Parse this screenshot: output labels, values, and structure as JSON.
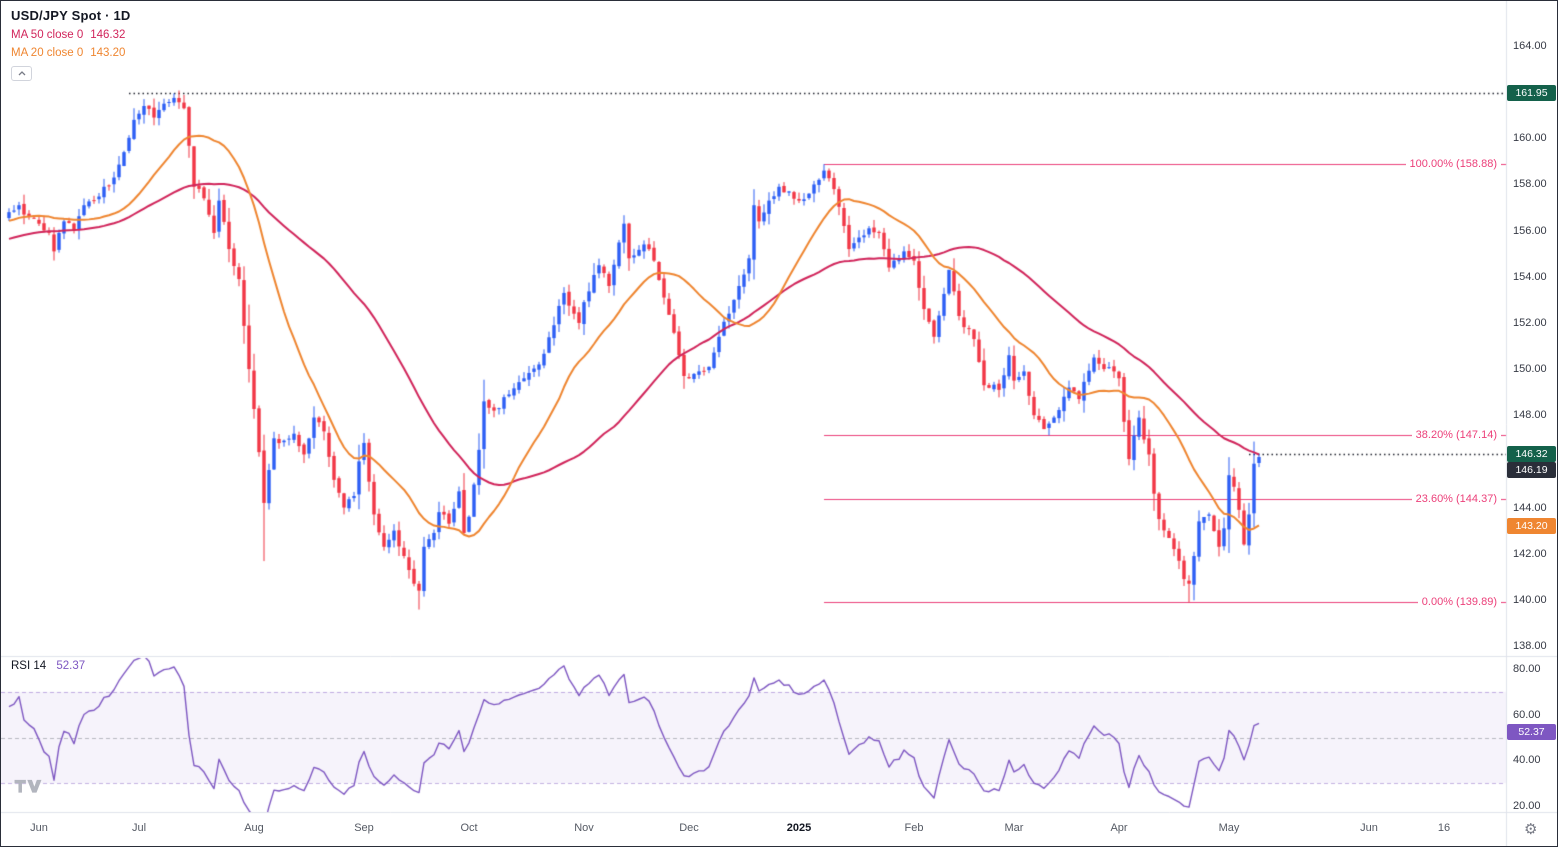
{
  "header": {
    "title": "USD/JPY Spot · 1D"
  },
  "legend": {
    "ma50": {
      "label": "MA 50 close 0",
      "value": "146.32"
    },
    "ma20": {
      "label": "MA 20 close 0",
      "value": "143.20"
    },
    "rsi": {
      "label": "RSI 14",
      "value": "52.37"
    }
  },
  "price_axis": {
    "ticks": [
      "164.00",
      "162.00",
      "160.00",
      "158.00",
      "156.00",
      "154.00",
      "152.00",
      "150.00",
      "148.00",
      "146.00",
      "144.00",
      "142.00",
      "140.00",
      "138.00"
    ],
    "badges": [
      {
        "label": "161.95",
        "value": 161.95,
        "bg": "#14614b"
      },
      {
        "label": "146.32",
        "value": 146.32,
        "bg": "#14614b"
      },
      {
        "label": "146.19",
        "value": 146.19,
        "bg": "#2a2e39"
      },
      {
        "label": "143.20",
        "value": 143.2,
        "bg": "#ef8631"
      }
    ],
    "rsi_ticks": [
      "80.00",
      "60.00",
      "40.00",
      "20.00"
    ],
    "rsi_badge": {
      "label": "52.37",
      "value": 52.37,
      "bg": "#7e57c2"
    }
  },
  "chart_data": {
    "type": "candlestick",
    "title": "USD/JPY Spot · 1D",
    "interval": "1D",
    "y_range": [
      138,
      164
    ],
    "candle_count": 251,
    "domain_candles": 300,
    "colors": {
      "up": "#2d5ff5",
      "down": "#f23645",
      "fib": "#ec407a",
      "dotted": "#1e222d",
      "grid": "#f0f3fa"
    },
    "ma": [
      {
        "period": 50,
        "color": "#d1255b",
        "last": "146.32"
      },
      {
        "period": 20,
        "color": "#ef8631",
        "last": "143.20"
      }
    ],
    "rsi": {
      "period": 14,
      "last": "52.37",
      "color": "#7e57c2",
      "band": [
        30,
        70
      ],
      "mid": 50,
      "range": [
        20,
        80
      ]
    },
    "last_close": 146.19,
    "fib_start_idx": 163,
    "fib_levels": [
      {
        "label": "100.00% (158.88)",
        "value": 158.88
      },
      {
        "label": "38.20% (147.14)",
        "value": 147.14
      },
      {
        "label": "23.60% (144.37)",
        "value": 144.37
      },
      {
        "label": "0.00% (139.89)",
        "value": 139.89
      }
    ],
    "dotted_lines": [
      {
        "value": 161.95,
        "from_idx": 24
      },
      {
        "value": 146.32,
        "from_idx": 248
      }
    ],
    "x_labels": [
      {
        "label": "Jun",
        "idx": 6
      },
      {
        "label": "Jul",
        "idx": 26
      },
      {
        "label": "Aug",
        "idx": 49
      },
      {
        "label": "Sep",
        "idx": 71
      },
      {
        "label": "Oct",
        "idx": 92
      },
      {
        "label": "Nov",
        "idx": 115
      },
      {
        "label": "Dec",
        "idx": 136
      },
      {
        "label": "2025",
        "idx": 158,
        "bold": true
      },
      {
        "label": "Feb",
        "idx": 181
      },
      {
        "label": "Mar",
        "idx": 201
      },
      {
        "label": "Apr",
        "idx": 222
      },
      {
        "label": "May",
        "idx": 244
      },
      {
        "label": "Jun",
        "idx": 272
      },
      {
        "label": "16",
        "idx": 287
      }
    ],
    "pre_anchors": [
      [
        -55,
        153.2
      ],
      [
        -45,
        154.6
      ],
      [
        -35,
        155.9
      ],
      [
        -25,
        154.8
      ],
      [
        -15,
        156.2
      ],
      [
        -5,
        156.9
      ],
      [
        -1,
        156.7
      ]
    ],
    "price_anchors": [
      [
        0,
        156.8
      ],
      [
        2,
        157.1
      ],
      [
        4,
        156.6
      ],
      [
        6,
        156.3
      ],
      [
        8,
        155.9
      ],
      [
        9,
        155.1
      ],
      [
        11,
        156.4
      ],
      [
        13,
        156.0
      ],
      [
        15,
        157.1
      ],
      [
        17,
        157.3
      ],
      [
        19,
        157.9
      ],
      [
        21,
        158.3
      ],
      [
        23,
        159.4
      ],
      [
        25,
        160.8
      ],
      [
        27,
        161.4
      ],
      [
        29,
        160.9
      ],
      [
        31,
        161.5
      ],
      [
        33,
        161.75
      ],
      [
        35,
        161.3
      ],
      [
        37,
        157.9
      ],
      [
        39,
        157.4
      ],
      [
        41,
        155.9
      ],
      [
        42,
        157.3
      ],
      [
        44,
        155.2
      ],
      [
        46,
        153.9
      ],
      [
        48,
        150.0
      ],
      [
        50,
        146.4
      ],
      [
        51,
        144.2
      ],
      [
        53,
        147.0
      ],
      [
        55,
        146.9
      ],
      [
        57,
        147.2
      ],
      [
        59,
        146.3
      ],
      [
        61,
        147.9
      ],
      [
        63,
        147.3
      ],
      [
        65,
        145.2
      ],
      [
        67,
        144.0
      ],
      [
        69,
        144.5
      ],
      [
        70,
        146.0
      ],
      [
        71,
        146.8
      ],
      [
        73,
        143.7
      ],
      [
        75,
        142.3
      ],
      [
        77,
        143.0
      ],
      [
        79,
        141.9
      ],
      [
        81,
        140.7
      ],
      [
        82,
        140.4
      ],
      [
        83,
        142.3
      ],
      [
        85,
        142.9
      ],
      [
        86,
        143.8
      ],
      [
        88,
        143.3
      ],
      [
        90,
        144.7
      ],
      [
        91,
        142.9
      ],
      [
        92,
        143.6
      ],
      [
        94,
        146.5
      ],
      [
        95,
        148.6
      ],
      [
        97,
        148.2
      ],
      [
        100,
        148.9
      ],
      [
        103,
        149.6
      ],
      [
        106,
        150.2
      ],
      [
        109,
        151.9
      ],
      [
        111,
        153.3
      ],
      [
        113,
        152.4
      ],
      [
        114,
        152.0
      ],
      [
        115,
        152.9
      ],
      [
        118,
        154.5
      ],
      [
        120,
        153.6
      ],
      [
        123,
        156.3
      ],
      [
        124,
        154.8
      ],
      [
        127,
        155.4
      ],
      [
        129,
        154.7
      ],
      [
        131,
        153.1
      ],
      [
        134,
        150.6
      ],
      [
        135,
        149.7
      ],
      [
        136,
        149.6
      ],
      [
        138,
        149.9
      ],
      [
        140,
        150.1
      ],
      [
        142,
        151.4
      ],
      [
        144,
        152.4
      ],
      [
        146,
        153.6
      ],
      [
        148,
        154.8
      ],
      [
        149,
        157.1
      ],
      [
        150,
        156.4
      ],
      [
        152,
        157.3
      ],
      [
        154,
        157.9
      ],
      [
        156,
        157.7
      ],
      [
        158,
        157.3
      ],
      [
        160,
        157.6
      ],
      [
        162,
        158.2
      ],
      [
        163,
        158.6
      ],
      [
        165,
        157.8
      ],
      [
        167,
        156.2
      ],
      [
        168,
        155.2
      ],
      [
        170,
        155.7
      ],
      [
        172,
        156.1
      ],
      [
        174,
        155.9
      ],
      [
        176,
        154.4
      ],
      [
        179,
        155.1
      ],
      [
        181,
        154.7
      ],
      [
        183,
        152.6
      ],
      [
        185,
        151.4
      ],
      [
        188,
        154.3
      ],
      [
        190,
        152.3
      ],
      [
        193,
        151.3
      ],
      [
        195,
        149.3
      ],
      [
        198,
        149.1
      ],
      [
        200,
        150.6
      ],
      [
        201,
        149.5
      ],
      [
        203,
        149.9
      ],
      [
        205,
        148.0
      ],
      [
        207,
        147.4
      ],
      [
        209,
        147.9
      ],
      [
        212,
        149.2
      ],
      [
        214,
        148.7
      ],
      [
        217,
        150.5
      ],
      [
        219,
        150.0
      ],
      [
        221,
        149.9
      ],
      [
        222,
        149.6
      ],
      [
        224,
        146.1
      ],
      [
        226,
        147.9
      ],
      [
        228,
        146.3
      ],
      [
        229,
        144.6
      ],
      [
        230,
        143.5
      ],
      [
        233,
        142.2
      ],
      [
        235,
        140.9
      ],
      [
        236,
        140.7
      ],
      [
        237,
        141.9
      ],
      [
        238,
        143.4
      ],
      [
        240,
        143.7
      ],
      [
        242,
        142.3
      ],
      [
        243,
        143.1
      ],
      [
        244,
        145.4
      ],
      [
        245,
        144.9
      ],
      [
        246,
        143.9
      ],
      [
        247,
        142.4
      ],
      [
        248,
        143.7
      ],
      [
        249,
        145.9
      ],
      [
        250,
        146.19
      ]
    ],
    "wick_overrides": [
      [
        27,
        "high",
        161.7
      ],
      [
        33,
        "high",
        161.95
      ],
      [
        35,
        "high",
        161.88
      ],
      [
        51,
        "low",
        141.68
      ],
      [
        82,
        "low",
        139.58
      ],
      [
        163,
        "high",
        158.88
      ],
      [
        236,
        "low",
        139.89
      ],
      [
        247,
        "low",
        142.35
      ],
      [
        250,
        "high",
        146.33
      ]
    ]
  }
}
